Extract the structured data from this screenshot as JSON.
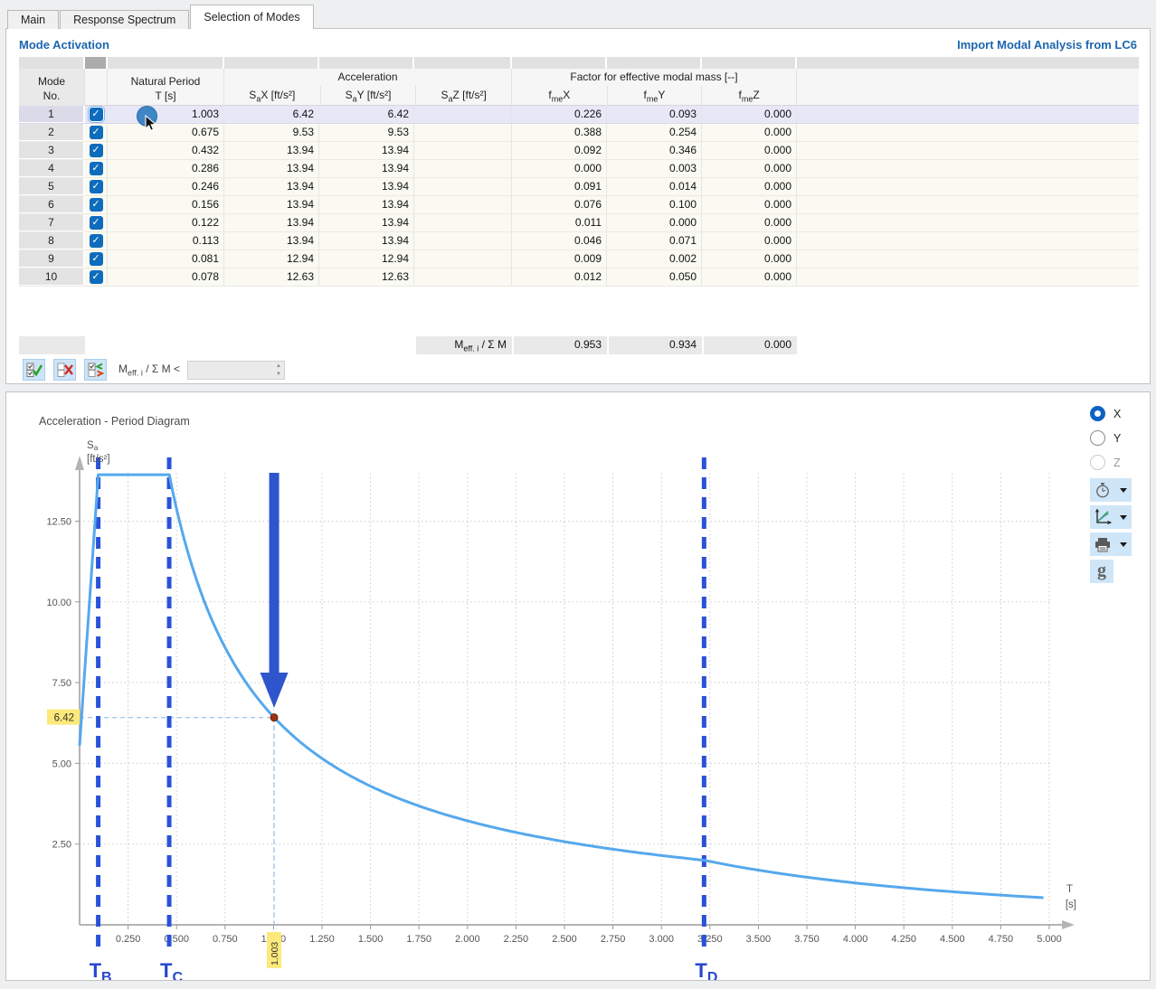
{
  "tabs": {
    "items": [
      {
        "label": "Main"
      },
      {
        "label": "Response Spectrum"
      },
      {
        "label": "Selection of Modes"
      }
    ],
    "active_index": 2
  },
  "section": {
    "title": "Mode Activation",
    "import_link": "Import Modal Analysis from LC6"
  },
  "table": {
    "headers": {
      "mode_line1": "Mode",
      "mode_line2": "No.",
      "period_line1": "Natural Period",
      "period_line2": "T [s]",
      "accel_group": "Acceleration",
      "sax": {
        "pre": "S",
        "sub": "a",
        "post": "X [ft/s²]"
      },
      "say": {
        "pre": "S",
        "sub": "a",
        "post": "Y [ft/s²]"
      },
      "saz": {
        "pre": "S",
        "sub": "a",
        "post": "Z [ft/s²]"
      },
      "factor_group": "Factor for effective modal mass [--]",
      "fmex": {
        "pre": "f",
        "sub": "me",
        "post": "X"
      },
      "fmey": {
        "pre": "f",
        "sub": "me",
        "post": "Y"
      },
      "fmez": {
        "pre": "f",
        "sub": "me",
        "post": "Z"
      }
    },
    "rows": [
      {
        "no": "1",
        "checked": true,
        "selected": true,
        "t": "1.003",
        "sax": "6.42",
        "say": "6.42",
        "saz": "",
        "fmex": "0.226",
        "fmey": "0.093",
        "fmez": "0.000"
      },
      {
        "no": "2",
        "checked": true,
        "selected": false,
        "t": "0.675",
        "sax": "9.53",
        "say": "9.53",
        "saz": "",
        "fmex": "0.388",
        "fmey": "0.254",
        "fmez": "0.000"
      },
      {
        "no": "3",
        "checked": true,
        "selected": false,
        "t": "0.432",
        "sax": "13.94",
        "say": "13.94",
        "saz": "",
        "fmex": "0.092",
        "fmey": "0.346",
        "fmez": "0.000"
      },
      {
        "no": "4",
        "checked": true,
        "selected": false,
        "t": "0.286",
        "sax": "13.94",
        "say": "13.94",
        "saz": "",
        "fmex": "0.000",
        "fmey": "0.003",
        "fmez": "0.000"
      },
      {
        "no": "5",
        "checked": true,
        "selected": false,
        "t": "0.246",
        "sax": "13.94",
        "say": "13.94",
        "saz": "",
        "fmex": "0.091",
        "fmey": "0.014",
        "fmez": "0.000"
      },
      {
        "no": "6",
        "checked": true,
        "selected": false,
        "t": "0.156",
        "sax": "13.94",
        "say": "13.94",
        "saz": "",
        "fmex": "0.076",
        "fmey": "0.100",
        "fmez": "0.000"
      },
      {
        "no": "7",
        "checked": true,
        "selected": false,
        "t": "0.122",
        "sax": "13.94",
        "say": "13.94",
        "saz": "",
        "fmex": "0.011",
        "fmey": "0.000",
        "fmez": "0.000"
      },
      {
        "no": "8",
        "checked": true,
        "selected": false,
        "t": "0.113",
        "sax": "13.94",
        "say": "13.94",
        "saz": "",
        "fmex": "0.046",
        "fmey": "0.071",
        "fmez": "0.000"
      },
      {
        "no": "9",
        "checked": true,
        "selected": false,
        "t": "0.081",
        "sax": "12.94",
        "say": "12.94",
        "saz": "",
        "fmex": "0.009",
        "fmey": "0.002",
        "fmez": "0.000"
      },
      {
        "no": "10",
        "checked": true,
        "selected": false,
        "t": "0.078",
        "sax": "12.63",
        "say": "12.63",
        "saz": "",
        "fmex": "0.012",
        "fmey": "0.050",
        "fmez": "0.000"
      }
    ],
    "summary": {
      "label": {
        "pre": "M",
        "sub": "eff. i",
        "post": " / Σ M"
      },
      "fmex": "0.953",
      "fmey": "0.934",
      "fmez": "0.000"
    }
  },
  "toolbar": {
    "buttons": [
      {
        "name": "select-all"
      },
      {
        "name": "deselect-all"
      },
      {
        "name": "select-by-condition"
      }
    ],
    "filter_label": {
      "pre": "M",
      "sub": "eff. i",
      "post": " / Σ M <"
    },
    "spinner_value": ""
  },
  "chart_data": {
    "type": "line",
    "title": "Acceleration - Period Diagram",
    "ylabel": {
      "pre": "S",
      "sub": "a",
      "unit": "[ft/s²]"
    },
    "xlabel": {
      "main": "T",
      "unit": "[s]"
    },
    "x_range": [
      0,
      5.0
    ],
    "y_range": [
      0,
      13.94
    ],
    "grid": true,
    "xticks": [
      {
        "v": 0.25,
        "label": "0.250"
      },
      {
        "v": 0.5,
        "label": "0.500"
      },
      {
        "v": 0.75,
        "label": "0.750"
      },
      {
        "v": 1.0,
        "label": "1.000"
      },
      {
        "v": 1.25,
        "label": "1.250"
      },
      {
        "v": 1.5,
        "label": "1.500"
      },
      {
        "v": 1.75,
        "label": "1.750"
      },
      {
        "v": 2.0,
        "label": "2.000"
      },
      {
        "v": 2.25,
        "label": "2.250"
      },
      {
        "v": 2.5,
        "label": "2.500"
      },
      {
        "v": 2.75,
        "label": "2.750"
      },
      {
        "v": 3.0,
        "label": "3.000"
      },
      {
        "v": 3.25,
        "label": "3.250"
      },
      {
        "v": 3.5,
        "label": "3.500"
      },
      {
        "v": 3.75,
        "label": "3.750"
      },
      {
        "v": 4.0,
        "label": "4.000"
      },
      {
        "v": 4.25,
        "label": "4.250"
      },
      {
        "v": 4.5,
        "label": "4.500"
      },
      {
        "v": 4.75,
        "label": "4.750"
      },
      {
        "v": 5.0,
        "label": "5.000"
      }
    ],
    "yticks": [
      {
        "v": 2.5,
        "label": "2.50"
      },
      {
        "v": 5.0,
        "label": "5.00"
      },
      {
        "v": 7.5,
        "label": "7.50"
      },
      {
        "v": 10.0,
        "label": "10.00"
      },
      {
        "v": 12.5,
        "label": "12.50"
      }
    ],
    "spectrum": {
      "sa_at_zero": 5.55,
      "plateau": 13.94,
      "TB": 0.096,
      "TC": 0.462,
      "TD": 3.22,
      "t_max": 5.0
    },
    "period_markers": [
      {
        "name": {
          "pre": "T",
          "sub": "B"
        },
        "t": 0.096
      },
      {
        "name": {
          "pre": "T",
          "sub": "C"
        },
        "t": 0.462
      },
      {
        "name": {
          "pre": "T",
          "sub": "D"
        },
        "t": 3.22
      }
    ],
    "highlight_point": {
      "t": 1.003,
      "sa": 6.42,
      "t_label": "1.003",
      "sa_label": "6.42"
    },
    "colors": {
      "curve": "#55a8ec",
      "marker_dash": "#2a52d8",
      "arrow": "#2f55cc",
      "point": "#9d3410",
      "highlight_bg": "#fce97a",
      "axis": "#b4b4b4",
      "grid": "#c9c9c9",
      "crosshair": "#a5c9ee",
      "label_text": "#2647cc"
    }
  },
  "direction_controls": {
    "radios": [
      {
        "label": "X",
        "state": "selected"
      },
      {
        "label": "Y",
        "state": "unselected"
      },
      {
        "label": "Z",
        "state": "disabled"
      }
    ],
    "icon_buttons": [
      {
        "name": "time-course"
      },
      {
        "name": "diagram-settings"
      },
      {
        "name": "print"
      }
    ],
    "g_button_label": "g"
  }
}
